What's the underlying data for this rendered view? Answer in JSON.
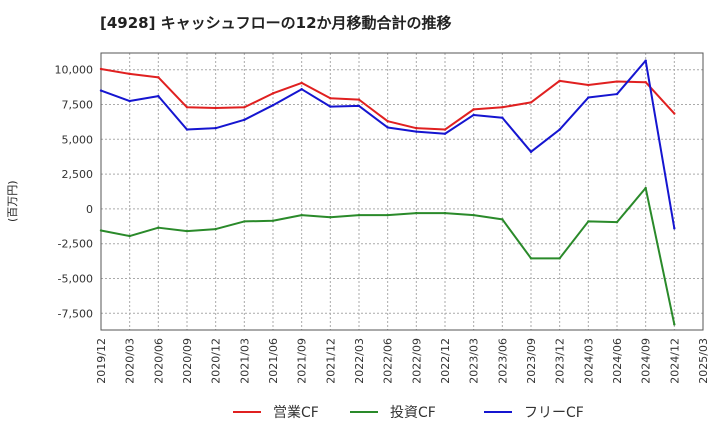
{
  "title": "[4928]  キャッシュフローの12か月移動合計の推移",
  "y_unit": "(百万円)",
  "chart_data": {
    "type": "line",
    "x": [
      "2019/12",
      "2020/03",
      "2020/06",
      "2020/09",
      "2020/12",
      "2021/03",
      "2021/06",
      "2021/09",
      "2021/12",
      "2022/03",
      "2022/06",
      "2022/09",
      "2022/12",
      "2023/03",
      "2023/06",
      "2023/09",
      "2023/12",
      "2024/03",
      "2024/06",
      "2024/09",
      "2024/12"
    ],
    "x_ticks": [
      "2019/12",
      "2020/03",
      "2020/06",
      "2020/09",
      "2020/12",
      "2021/03",
      "2021/06",
      "2021/09",
      "2021/12",
      "2022/03",
      "2022/06",
      "2022/09",
      "2022/12",
      "2023/03",
      "2023/06",
      "2023/09",
      "2023/12",
      "2024/03",
      "2024/06",
      "2024/09",
      "2024/12",
      "2025/03"
    ],
    "y_ticks": [
      10000,
      7500,
      5000,
      2500,
      0,
      -2500,
      -5000,
      -7500
    ],
    "y_tick_labels": [
      "10,000",
      "7,500",
      "5,000",
      "2,500",
      "0",
      "-2,500",
      "-5,000",
      "-7,500"
    ],
    "ylim": [
      -8700,
      11200
    ],
    "grid": true,
    "legend_position": "bottom",
    "series": [
      {
        "name": "営業CF",
        "color": "#e02020",
        "values": [
          10050,
          9700,
          9450,
          7300,
          7250,
          7300,
          8300,
          9050,
          7950,
          7850,
          6300,
          5800,
          5700,
          7150,
          7300,
          7650,
          9200,
          8900,
          9150,
          9100,
          6850
        ]
      },
      {
        "name": "投資CF",
        "color": "#2a8a2a",
        "values": [
          -1550,
          -1950,
          -1350,
          -1600,
          -1450,
          -900,
          -850,
          -450,
          -600,
          -450,
          -450,
          -300,
          -300,
          -450,
          -750,
          -3550,
          -3550,
          -900,
          -950,
          1500,
          -8300
        ]
      },
      {
        "name": "フリーCF",
        "color": "#1515d0",
        "values": [
          8500,
          7750,
          8100,
          5700,
          5800,
          6400,
          7450,
          8600,
          7350,
          7400,
          5850,
          5550,
          5400,
          6750,
          6550,
          4100,
          5700,
          8000,
          8250,
          10650,
          -1400
        ]
      }
    ]
  }
}
